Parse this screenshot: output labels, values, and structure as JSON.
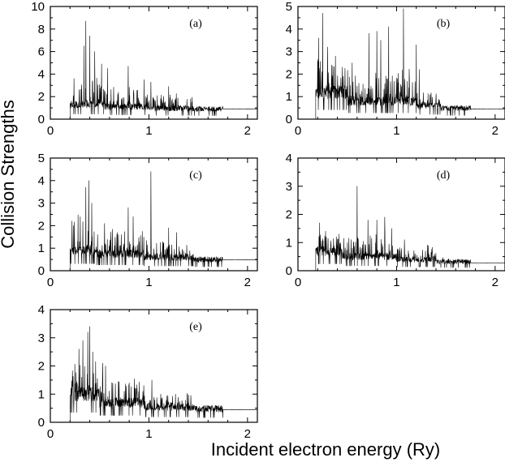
{
  "figure": {
    "ylabel": "Collision Strengths",
    "xlabel": "Incident electron energy (Ry)"
  },
  "chart_data": [
    {
      "type": "line",
      "panel_label": "(a)",
      "xlim": [
        0,
        2.1
      ],
      "ylim": [
        0,
        10
      ],
      "xticks": [
        0,
        1,
        2
      ],
      "yticks": [
        0,
        2,
        4,
        6,
        8,
        10
      ],
      "threshold": 0.2,
      "end": 2.1,
      "background": 0.9,
      "segments": [
        {
          "x0": 0.2,
          "x1": 0.55,
          "base": 1.3,
          "amp": 2.6,
          "density": 1.0
        },
        {
          "x0": 0.55,
          "x1": 1.0,
          "base": 1.1,
          "amp": 1.8,
          "density": 0.9
        },
        {
          "x0": 1.0,
          "x1": 1.45,
          "base": 0.95,
          "amp": 1.2,
          "density": 0.8
        },
        {
          "x0": 1.45,
          "x1": 1.75,
          "base": 0.9,
          "amp": 0.08,
          "density": 0.3
        }
      ],
      "peaks": [
        [
          0.24,
          3.6
        ],
        [
          0.34,
          6.5
        ],
        [
          0.36,
          8.7
        ],
        [
          0.4,
          7.4
        ],
        [
          0.45,
          6.0
        ],
        [
          0.52,
          4.9
        ],
        [
          0.58,
          4.5
        ],
        [
          0.79,
          4.7
        ],
        [
          0.95,
          3.5
        ],
        [
          1.02,
          3.3
        ],
        [
          1.2,
          2.9
        ]
      ]
    },
    {
      "type": "line",
      "panel_label": "(b)",
      "xlim": [
        0,
        2.1
      ],
      "ylim": [
        0,
        5
      ],
      "xticks": [
        0,
        1,
        2
      ],
      "yticks": [
        0,
        1,
        2,
        3,
        4,
        5
      ],
      "threshold": 0.18,
      "end": 2.1,
      "background": 0.45,
      "segments": [
        {
          "x0": 0.18,
          "x1": 0.5,
          "base": 1.2,
          "amp": 1.4,
          "density": 1.0
        },
        {
          "x0": 0.5,
          "x1": 1.2,
          "base": 0.8,
          "amp": 1.3,
          "density": 1.0
        },
        {
          "x0": 1.2,
          "x1": 1.45,
          "base": 0.6,
          "amp": 0.6,
          "density": 0.7
        },
        {
          "x0": 1.45,
          "x1": 1.75,
          "base": 0.48,
          "amp": 0.05,
          "density": 0.3
        }
      ],
      "peaks": [
        [
          0.21,
          3.6
        ],
        [
          0.25,
          4.7
        ],
        [
          0.3,
          3.2
        ],
        [
          0.38,
          2.8
        ],
        [
          0.55,
          2.5
        ],
        [
          0.72,
          3.8
        ],
        [
          0.8,
          3.9
        ],
        [
          0.84,
          3.5
        ],
        [
          0.92,
          4.1
        ],
        [
          1.07,
          4.9
        ],
        [
          1.2,
          3.3
        ],
        [
          1.23,
          2.2
        ]
      ]
    },
    {
      "type": "line",
      "panel_label": "(c)",
      "xlim": [
        0,
        2.1
      ],
      "ylim": [
        0,
        5
      ],
      "xticks": [
        0,
        1,
        2
      ],
      "yticks": [
        0,
        1,
        2,
        3,
        4,
        5
      ],
      "threshold": 0.2,
      "end": 2.1,
      "background": 0.48,
      "segments": [
        {
          "x0": 0.2,
          "x1": 0.45,
          "base": 0.9,
          "amp": 1.6,
          "density": 1.0
        },
        {
          "x0": 0.45,
          "x1": 0.95,
          "base": 0.75,
          "amp": 1.0,
          "density": 0.9
        },
        {
          "x0": 0.95,
          "x1": 1.45,
          "base": 0.6,
          "amp": 0.8,
          "density": 0.8
        },
        {
          "x0": 1.45,
          "x1": 1.75,
          "base": 0.5,
          "amp": 0.05,
          "density": 0.3
        }
      ],
      "peaks": [
        [
          0.22,
          2.2
        ],
        [
          0.36,
          3.7
        ],
        [
          0.39,
          4.0
        ],
        [
          0.42,
          3.0
        ],
        [
          0.55,
          2.1
        ],
        [
          0.79,
          2.8
        ],
        [
          0.84,
          2.4
        ],
        [
          1.02,
          4.4
        ],
        [
          1.2,
          1.9
        ],
        [
          1.28,
          1.7
        ]
      ]
    },
    {
      "type": "line",
      "panel_label": "(d)",
      "xlim": [
        0,
        2.1
      ],
      "ylim": [
        0,
        4
      ],
      "xticks": [
        0,
        1,
        2
      ],
      "yticks": [
        0,
        1,
        2,
        3,
        4
      ],
      "threshold": 0.18,
      "end": 2.1,
      "background": 0.28,
      "segments": [
        {
          "x0": 0.18,
          "x1": 0.45,
          "base": 0.7,
          "amp": 0.7,
          "density": 1.0
        },
        {
          "x0": 0.45,
          "x1": 1.0,
          "base": 0.5,
          "amp": 0.8,
          "density": 1.0
        },
        {
          "x0": 1.0,
          "x1": 1.4,
          "base": 0.4,
          "amp": 0.5,
          "density": 0.8
        },
        {
          "x0": 1.4,
          "x1": 1.75,
          "base": 0.32,
          "amp": 0.15,
          "density": 0.5
        }
      ],
      "peaks": [
        [
          0.22,
          1.7
        ],
        [
          0.28,
          1.4
        ],
        [
          0.6,
          3.0
        ],
        [
          0.71,
          1.8
        ],
        [
          0.8,
          1.8
        ],
        [
          0.88,
          1.9
        ],
        [
          0.95,
          1.5
        ],
        [
          1.08,
          1.1
        ]
      ]
    },
    {
      "type": "line",
      "panel_label": "(e)",
      "xlim": [
        0,
        2.1
      ],
      "ylim": [
        0,
        4
      ],
      "xticks": [
        0,
        1,
        2
      ],
      "yticks": [
        0,
        1,
        2,
        3,
        4
      ],
      "threshold": 0.2,
      "end": 2.1,
      "background": 0.45,
      "segments": [
        {
          "x0": 0.2,
          "x1": 0.5,
          "base": 1.0,
          "amp": 1.2,
          "density": 1.0
        },
        {
          "x0": 0.5,
          "x1": 0.95,
          "base": 0.7,
          "amp": 0.8,
          "density": 0.9
        },
        {
          "x0": 0.95,
          "x1": 1.45,
          "base": 0.55,
          "amp": 0.5,
          "density": 0.8
        },
        {
          "x0": 1.45,
          "x1": 1.75,
          "base": 0.48,
          "amp": 0.04,
          "density": 0.3
        }
      ],
      "peaks": [
        [
          0.29,
          2.6
        ],
        [
          0.33,
          2.9
        ],
        [
          0.38,
          3.2
        ],
        [
          0.4,
          3.4
        ],
        [
          0.43,
          2.5
        ],
        [
          0.53,
          2.1
        ],
        [
          0.56,
          2.0
        ],
        [
          0.8,
          1.4
        ],
        [
          1.03,
          1.5
        ],
        [
          1.12,
          1.0
        ],
        [
          1.27,
          1.0
        ]
      ]
    }
  ]
}
